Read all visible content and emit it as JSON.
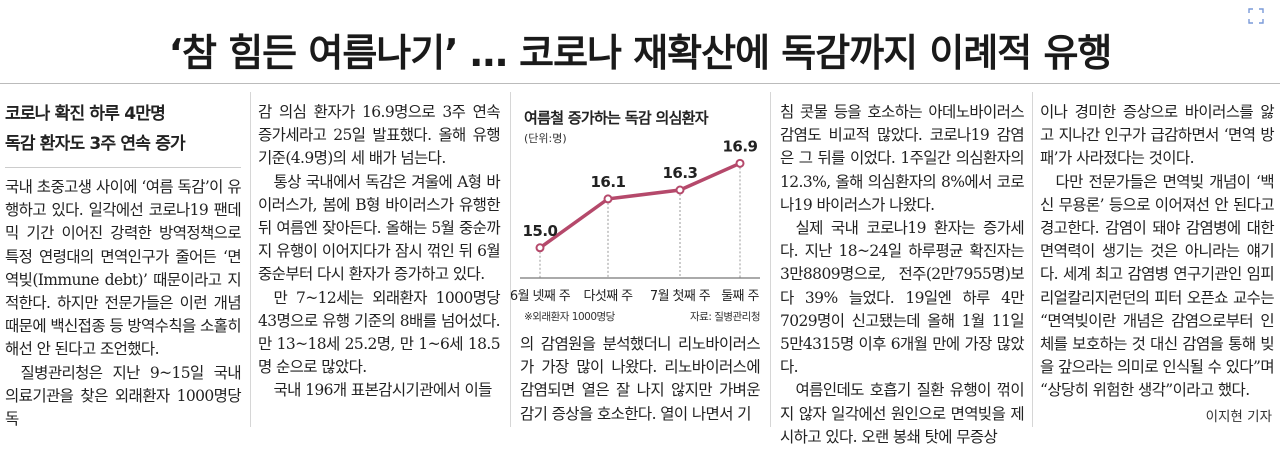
{
  "headline": "‘참 힘든 여름나기’ … 코로나 재확산에 독감까지 이례적 유행",
  "subheads": [
    "코로나 확진 하루 4만명",
    "독감 환자도 3주 연속 증가"
  ],
  "columns": [
    {
      "paragraphs": [
        "국내 초중고생 사이에 ‘여름 독감’이 유행하고 있다. 일각에선 코로나19 팬데믹 기간 이어진 강력한 방역정책으로 특정 연령대의 면역인구가 줄어든 ‘면역빚(Immune debt)’ 때문이라고 지적한다. 하지만 전문가들은 이런 개념 때문에 백신접종 등 방역수칙을 소홀히 해선 안 된다고 조언했다.",
        "질병관리청은 지난 9~15일 국내 의료기관을 찾은 외래환자 1000명당 독"
      ]
    },
    {
      "paragraphs": [
        "감 의심 환자가 16.9명으로 3주 연속 증가세라고 25일 발표했다. 올해 유행기준(4.9명)의 세 배가 넘는다.",
        "통상 국내에서 독감은 겨울에 A형 바이러스가, 봄에 B형 바이러스가 유행한 뒤 여름엔 잦아든다. 올해는 5월 중순까지 유행이 이어지다가 잠시 꺾인 뒤 6월 중순부터 다시 환자가 증가하고 있다.",
        "만 7~12세는 외래환자 1000명당 43명으로 유행 기준의 8배를 넘어섰다. 만 13~18세 25.2명, 만 1~6세 18.5명 순으로 많았다.",
        "국내 196개 표본감시기관에서 이들"
      ]
    },
    {
      "paragraphs": [
        "의 감염원을 분석했더니 리노바이러스가 가장 많이 나왔다. 리노바이러스에 감염되면 열은 잘 나지 않지만 가벼운 감기 증상을 호소한다. 열이 나면서 기"
      ]
    },
    {
      "paragraphs": [
        "침 콧물 등을 호소하는 아데노바이러스 감염도 비교적 많았다. 코로나19 감염은 그 뒤를 이었다. 1주일간 의심환자의 12.3%, 올해 의심환자의 8%에서 코로나19 바이러스가 나왔다.",
        "실제 국내 코로나19 환자는 증가세다. 지난 18~24일 하루평균 확진자는 3만8809명으로, 전주(2만7955명)보다 39% 늘었다. 19일엔 하루 4만7029명이 신고됐는데 올해 1월 11일 5만4315명 이후 6개월 만에 가장 많았다.",
        "여름인데도 호흡기 질환 유행이 꺾이지 않자 일각에선 원인으로 면역빚을 제시하고 있다. 오랜 봉쇄 탓에 무증상"
      ]
    },
    {
      "paragraphs": [
        "이나 경미한 증상으로 바이러스를 앓고 지나간 인구가 급감하면서 ‘면역 방패’가 사라졌다는 것이다.",
        "다만 전문가들은 면역빚 개념이 ‘백신 무용론’ 등으로 이어져선 안 된다고 경고한다. 감염이 돼야 감염병에 대한 면역력이 생기는 것은 아니라는 얘기다. 세계 최고 감염병 연구기관인 임피리얼칼리지런던의 피터 오픈쇼 교수는 “면역빚이란 개념은 감염으로부터 인체를 보호하는 것 대신 감염을 통해 빚을 갚으라는 의미로 인식될 수 있다”며 “상당히 위험한 생각”이라고 했다."
      ]
    }
  ],
  "byline": "이지현 기자",
  "chart_data": {
    "type": "line",
    "title": "여름철 증가하는 독감 의심환자",
    "unit": "(단위:명)",
    "categories": [
      "6월 넷째 주",
      "다섯째 주",
      "7월 첫째 주",
      "둘째 주"
    ],
    "values": [
      15.0,
      16.1,
      16.3,
      16.9
    ],
    "value_labels": [
      "15.0",
      "16.1",
      "16.3",
      "16.9"
    ],
    "note": "※외래환자 1000명당",
    "source": "자료: 질병관리청",
    "color": "#b5496b"
  }
}
